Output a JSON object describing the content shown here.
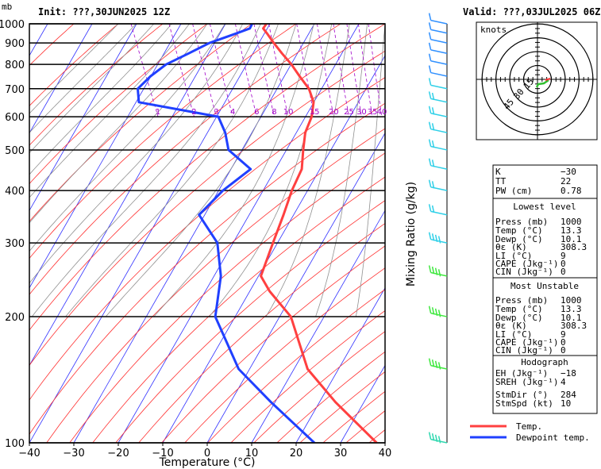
{
  "header": {
    "unit": "mb",
    "init": "Init: ???,30JUN2025  12Z",
    "valid": "Valid: ???,03JUL2025  06Z"
  },
  "chart_data": {
    "type": "line",
    "title": "",
    "xlabel": "Temperature (°C)",
    "ylabel_right": "Mixing Ratio (g/kg)",
    "xlim": [
      -40,
      40
    ],
    "ylim": [
      1000,
      100
    ],
    "y_scale": "log",
    "x_ticks": [
      "−40",
      "−30",
      "−20",
      "−10",
      "0",
      "10",
      "20",
      "30",
      "40"
    ],
    "y_ticks": [
      "100",
      "200",
      "300",
      "400",
      "500",
      "600",
      "700",
      "800",
      "900",
      "1000"
    ],
    "mixing_ratio_labels": [
      "1",
      "2",
      "3",
      "4",
      "6",
      "8",
      "10",
      "15",
      "20",
      "25",
      "30",
      "35",
      "40"
    ],
    "series": [
      {
        "name": "Temp.",
        "color": "#ff4040",
        "points": [
          [
            1000,
            13.3
          ],
          [
            975,
            12.0
          ],
          [
            950,
            12.2
          ],
          [
            900,
            12.5
          ],
          [
            850,
            13.0
          ],
          [
            800,
            13.7
          ],
          [
            750,
            14.0
          ],
          [
            700,
            14.5
          ],
          [
            650,
            13.8
          ],
          [
            600,
            11.5
          ],
          [
            550,
            8.0
          ],
          [
            500,
            5.3
          ],
          [
            450,
            2.5
          ],
          [
            400,
            -2.5
          ],
          [
            350,
            -7.5
          ],
          [
            300,
            -13.5
          ],
          [
            250,
            -20.5
          ],
          [
            230,
            -20.5
          ],
          [
            200,
            -19.0
          ],
          [
            150,
            -22.0
          ],
          [
            125,
            -20.0
          ],
          [
            100,
            -16.0
          ]
        ]
      },
      {
        "name": "Dewpoint temp.",
        "color": "#2040ff",
        "points": [
          [
            1000,
            10.1
          ],
          [
            975,
            9.0
          ],
          [
            950,
            5.5
          ],
          [
            900,
            -2.0
          ],
          [
            850,
            -8.0
          ],
          [
            800,
            -14.5
          ],
          [
            750,
            -19.5
          ],
          [
            700,
            -24.0
          ],
          [
            650,
            -25.5
          ],
          [
            600,
            -9.5
          ],
          [
            550,
            -10.0
          ],
          [
            500,
            -11.5
          ],
          [
            450,
            -9.0
          ],
          [
            400,
            -18.0
          ],
          [
            350,
            -26.5
          ],
          [
            300,
            -26.0
          ],
          [
            250,
            -29.5
          ],
          [
            200,
            -36.0
          ],
          [
            150,
            -37.5
          ],
          [
            125,
            -34.5
          ],
          [
            100,
            -30.0
          ]
        ]
      }
    ],
    "wind_barb_levels": [
      100,
      150,
      200,
      250,
      300,
      350,
      400,
      450,
      500,
      550,
      600,
      650,
      700,
      750,
      800,
      850,
      900,
      950,
      1000
    ],
    "hodograph": {
      "label": "knots",
      "ring_labels": [
        "15",
        "30",
        "45"
      ]
    }
  },
  "indices": {
    "k_label": "K",
    "k": "−30",
    "tt_label": "TT",
    "tt": "22",
    "pw_label": "PW (cm)",
    "pw": "0.78",
    "lowest_title": "Lowest level",
    "most_unstable_title": "Most Unstable",
    "press_label": "Press (mb)",
    "temp_label": "Temp  (°C)",
    "dewp_label": "Dewp  (°C)",
    "theta_label": "θε (K)",
    "li_label": "LI (°C)",
    "cape_label": "CAPE (Jkg⁻¹)",
    "cin_label": "CIN (Jkg⁻¹)",
    "lowest": {
      "press": "1000",
      "temp": "13.3",
      "dewp": "10.1",
      "theta": "308.3",
      "li": "9",
      "cape": "0",
      "cin": "0"
    },
    "most_unstable": {
      "press": "1000",
      "temp": "13.3",
      "dewp": "10.1",
      "theta": "308.3",
      "li": "9",
      "cape": "0",
      "cin": "0"
    },
    "hodograph_title": "Hodograph",
    "eh_label": "EH (Jkg⁻¹)",
    "eh": "−18",
    "sreh_label": "SREH (Jkg⁻¹)",
    "sreh": "4",
    "stmdir_label": "StmDir (°)",
    "stmdir": "284",
    "stmspd_label": "StmSpd (kt)",
    "stmspd": "10"
  },
  "legend": {
    "temp": "Temp.",
    "dew": "Dewpoint temp."
  }
}
